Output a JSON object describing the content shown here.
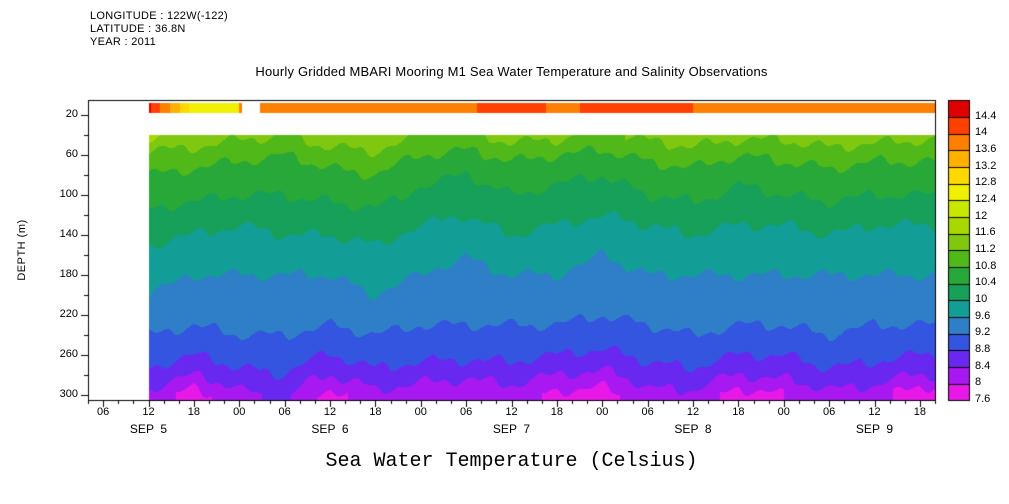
{
  "meta": {
    "longitude": "LONGITUDE : 122W(-122)",
    "latitude": "LATITUDE : 36.8N",
    "year": "YEAR : 2011"
  },
  "title": "Hourly Gridded MBARI Mooring M1 Sea Water Temperature and Salinity Observations",
  "chart_data": {
    "type": "heatmap",
    "title": "Hourly Gridded MBARI Mooring M1 Sea Water Temperature and Salinity Observations",
    "ylabel": "DEPTH (m)",
    "caption": "Sea Water Temperature (Celsius)",
    "x_axis": {
      "range": [
        4,
        116
      ],
      "minor_step": 2,
      "tick_hours": [
        6,
        12,
        18,
        24,
        30,
        36,
        42,
        48,
        54,
        60,
        66,
        72,
        78,
        84,
        90,
        96,
        102,
        108,
        114
      ],
      "tick_labels": [
        "06",
        "12",
        "18",
        "00",
        "06",
        "12",
        "18",
        "00",
        "06",
        "12",
        "18",
        "00",
        "06",
        "12",
        "18",
        "00",
        "06",
        "12",
        "18"
      ],
      "day_labels": [
        {
          "label": "SEP  5",
          "hour": 12
        },
        {
          "label": "SEP  6",
          "hour": 36
        },
        {
          "label": "SEP  7",
          "hour": 60
        },
        {
          "label": "SEP  8",
          "hour": 84
        },
        {
          "label": "SEP  9",
          "hour": 108
        }
      ]
    },
    "y_axis": {
      "range": [
        5,
        305
      ],
      "ticks": [
        20,
        60,
        100,
        140,
        180,
        220,
        260,
        300
      ],
      "minor_ticks": [
        40,
        80,
        120,
        160,
        200,
        240,
        280
      ]
    },
    "colorbar": {
      "levels": [
        7.6,
        8,
        8.4,
        8.8,
        9.2,
        9.6,
        10,
        10.4,
        10.8,
        11.2,
        11.6,
        12,
        12.4,
        12.8,
        13.2,
        13.6,
        14,
        14.4
      ],
      "labels": [
        "7.6",
        "8",
        "8.4",
        "8.8",
        "9.2",
        "9.6",
        "10",
        "10.4",
        "10.8",
        "11.2",
        "11.6",
        "12",
        "12.4",
        "12.8",
        "13.2",
        "13.6",
        "14",
        "14.4"
      ],
      "interval_colors": [
        "#e818e8",
        "#a818f0",
        "#6828f0",
        "#3355e0",
        "#2e7fc8",
        "#129e96",
        "#16a05a",
        "#28a838",
        "#50b818",
        "#80c810",
        "#a8d800",
        "#c8e800",
        "#f0f000",
        "#ffd800",
        "#ffb000",
        "#ff8000",
        "#ff4000"
      ],
      "over_color": "#e00000"
    },
    "data_start_hour": 12,
    "surface": {
      "depth_range": [
        8,
        18
      ],
      "gap_hours": [
        24.3,
        26.8
      ],
      "values": [
        14.5,
        12.6,
        null,
        13.8,
        13.9,
        13.8,
        13.8,
        13.9,
        14.3,
        13.9,
        14.1,
        14.2,
        14.0,
        13.8,
        13.8,
        13.9,
        13.9,
        14.0
      ]
    },
    "grid": {
      "field_top_depth": 40,
      "time_hours": [
        12,
        18,
        24,
        30,
        36,
        42,
        48,
        54,
        60,
        66,
        72,
        78,
        84,
        90,
        96,
        102,
        108,
        114
      ],
      "depths": [
        40,
        60,
        80,
        100,
        120,
        140,
        160,
        180,
        200,
        220,
        240,
        260,
        280,
        300
      ],
      "values": [
        [
          11.7,
          11.5,
          11.3,
          11.2,
          11.5,
          11.6,
          11.2,
          11.1,
          11.4,
          11.3,
          11.1,
          11.3,
          11.5,
          11.3,
          11.3,
          11.5,
          11.4,
          11.3
        ],
        [
          11.1,
          11.0,
          10.9,
          10.8,
          11.0,
          11.1,
          10.8,
          10.7,
          10.9,
          10.8,
          10.7,
          10.9,
          11.0,
          10.8,
          10.9,
          11.0,
          10.9,
          10.9
        ],
        [
          10.8,
          10.7,
          10.6,
          10.5,
          10.7,
          10.8,
          10.5,
          10.4,
          10.6,
          10.5,
          10.4,
          10.6,
          10.7,
          10.5,
          10.6,
          10.7,
          10.6,
          10.6
        ],
        [
          10.6,
          10.5,
          10.4,
          10.4,
          10.5,
          10.6,
          10.3,
          10.2,
          10.4,
          10.3,
          10.2,
          10.4,
          10.5,
          10.3,
          10.4,
          10.5,
          10.4,
          10.4
        ],
        [
          10.3,
          10.2,
          10.1,
          10.2,
          10.2,
          10.3,
          10.1,
          10.0,
          10.2,
          10.1,
          10.0,
          10.1,
          10.2,
          10.1,
          10.1,
          10.2,
          10.1,
          10.1
        ],
        [
          10.1,
          10.0,
          9.9,
          10.0,
          10.0,
          10.1,
          9.9,
          9.8,
          10.0,
          9.9,
          9.8,
          9.9,
          10.0,
          9.9,
          9.9,
          10.0,
          9.9,
          9.9
        ],
        [
          9.9,
          9.8,
          9.7,
          9.8,
          9.8,
          9.9,
          9.7,
          9.6,
          9.8,
          9.7,
          9.6,
          9.7,
          9.8,
          9.7,
          9.7,
          9.8,
          9.7,
          9.7
        ],
        [
          9.7,
          9.6,
          9.6,
          9.6,
          9.6,
          9.7,
          9.6,
          9.5,
          9.6,
          9.6,
          9.5,
          9.6,
          9.6,
          9.6,
          9.6,
          9.6,
          9.6,
          9.6
        ],
        [
          9.6,
          9.5,
          9.5,
          9.5,
          9.5,
          9.6,
          9.5,
          9.4,
          9.5,
          9.5,
          9.4,
          9.5,
          9.5,
          9.5,
          9.5,
          9.5,
          9.5,
          9.5
        ],
        [
          9.4,
          9.3,
          9.4,
          9.4,
          9.3,
          9.4,
          9.3,
          9.3,
          9.3,
          9.3,
          9.2,
          9.3,
          9.4,
          9.3,
          9.3,
          9.4,
          9.3,
          9.3
        ],
        [
          9.2,
          9.1,
          9.2,
          9.2,
          9.1,
          9.2,
          9.1,
          9.1,
          9.1,
          9.1,
          9.0,
          9.1,
          9.2,
          9.1,
          9.1,
          9.2,
          9.1,
          9.1
        ],
        [
          9.0,
          8.8,
          9.0,
          9.0,
          8.8,
          9.0,
          8.9,
          8.9,
          8.9,
          8.8,
          8.7,
          8.9,
          9.0,
          8.8,
          8.8,
          9.0,
          8.9,
          8.8
        ],
        [
          8.7,
          8.4,
          8.7,
          8.8,
          8.4,
          8.7,
          8.6,
          8.5,
          8.6,
          8.4,
          8.3,
          8.6,
          8.7,
          8.4,
          8.5,
          8.7,
          8.6,
          8.4
        ],
        [
          8.3,
          7.8,
          8.3,
          8.5,
          7.8,
          8.3,
          8.1,
          8.0,
          8.2,
          7.9,
          7.8,
          8.3,
          8.3,
          7.8,
          8.0,
          8.3,
          8.2,
          7.7
        ]
      ]
    }
  }
}
